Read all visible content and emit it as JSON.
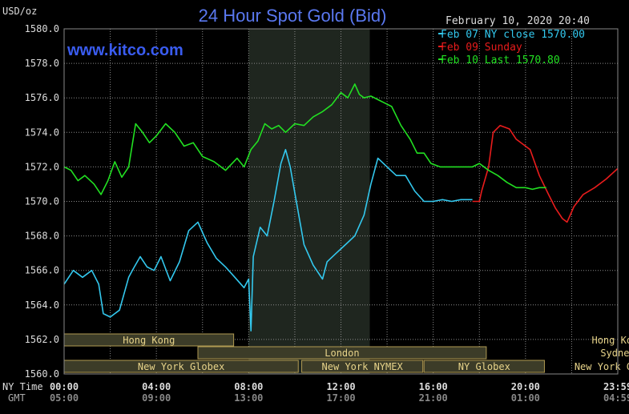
{
  "chart_data": {
    "type": "line",
    "title": "24 Hour Spot Gold (Bid)",
    "watermark": "www.kitco.com",
    "date_stamp": "February 10, 2020 20:40",
    "y_unit_label": "USD/oz",
    "ylim": [
      1560.0,
      1580.0
    ],
    "y_ticks": [
      "1560.0",
      "1562.0",
      "1564.0",
      "1566.0",
      "1568.0",
      "1570.0",
      "1572.0",
      "1574.0",
      "1576.0",
      "1578.0",
      "1580.0"
    ],
    "x_row_labels": [
      "NY Time",
      "GMT"
    ],
    "x_ticks_ny": [
      "00:00",
      "04:00",
      "08:00",
      "12:00",
      "16:00",
      "20:00",
      "23:59"
    ],
    "x_ticks_gmt": [
      "05:00",
      "09:00",
      "13:00",
      "17:00",
      "21:00",
      "01:00",
      "04:59"
    ],
    "colors": {
      "feb07": "#33c8ee",
      "feb09": "#e81c1c",
      "feb10": "#22e022",
      "session_fill": "#3c3c28",
      "session_border": "#b09a52",
      "title": "#5a78f0",
      "shade": "#1f261f"
    },
    "legend": [
      {
        "label": "Feb 07 NY close 1570.00",
        "series": "feb07"
      },
      {
        "label": "Feb 09 Sunday",
        "series": "feb09"
      },
      {
        "label": "Feb 10 Last 1570.80",
        "series": "feb10"
      }
    ],
    "series": [
      {
        "name": "Feb 07",
        "key": "feb07",
        "x": [
          0.0,
          0.4,
          0.8,
          1.2,
          1.5,
          1.7,
          2.0,
          2.4,
          2.8,
          3.0,
          3.3,
          3.6,
          3.9,
          4.2,
          4.6,
          5.0,
          5.4,
          5.8,
          6.2,
          6.6,
          7.0,
          7.4,
          7.8,
          8.0,
          8.1,
          8.2,
          8.5,
          8.8,
          9.1,
          9.4,
          9.6,
          9.8,
          10.0,
          10.4,
          10.8,
          11.2,
          11.4,
          11.8,
          12.2,
          12.6,
          13.0,
          13.3,
          13.6,
          14.0,
          14.4,
          14.8,
          15.2,
          15.6,
          16.0,
          16.4,
          16.8,
          17.2,
          17.5,
          17.7
        ],
        "y": [
          1565.2,
          1566.0,
          1565.6,
          1566.0,
          1565.2,
          1563.5,
          1563.3,
          1563.7,
          1565.6,
          1566.1,
          1566.8,
          1566.2,
          1566.0,
          1566.8,
          1565.4,
          1566.5,
          1568.3,
          1568.8,
          1567.6,
          1566.7,
          1566.2,
          1565.6,
          1565.0,
          1565.5,
          1562.5,
          1566.8,
          1568.5,
          1568.0,
          1570.0,
          1572.2,
          1573.0,
          1572.0,
          1570.5,
          1567.5,
          1566.3,
          1565.5,
          1566.5,
          1567.0,
          1567.5,
          1568.0,
          1569.2,
          1571.0,
          1572.5,
          1572.0,
          1571.5,
          1571.5,
          1570.6,
          1570.0,
          1570.0,
          1570.1,
          1570.0,
          1570.1,
          1570.1,
          1570.1
        ]
      },
      {
        "name": "Feb 09",
        "key": "feb09",
        "x": [
          17.7,
          18.0,
          18.1,
          18.4,
          18.6,
          18.9,
          19.3,
          19.6,
          19.9,
          20.2,
          20.6,
          21.0,
          21.3,
          21.6,
          21.8,
          22.1,
          22.5,
          23.0,
          23.5,
          23.99
        ],
        "y": [
          1570.0,
          1570.0,
          1570.6,
          1572.0,
          1574.0,
          1574.4,
          1574.2,
          1573.6,
          1573.3,
          1573.0,
          1571.5,
          1570.4,
          1569.6,
          1569.0,
          1568.8,
          1569.7,
          1570.4,
          1570.8,
          1571.3,
          1571.9
        ]
      },
      {
        "name": "Feb 10",
        "key": "feb10",
        "x": [
          0.0,
          0.3,
          0.6,
          0.9,
          1.3,
          1.6,
          1.9,
          2.2,
          2.5,
          2.8,
          3.1,
          3.4,
          3.7,
          4.0,
          4.4,
          4.8,
          5.2,
          5.6,
          6.0,
          6.5,
          7.0,
          7.5,
          7.8,
          8.1,
          8.4,
          8.7,
          9.0,
          9.3,
          9.6,
          10.0,
          10.4,
          10.8,
          11.2,
          11.6,
          12.0,
          12.3,
          12.6,
          12.8,
          13.0,
          13.3,
          13.6,
          13.9,
          14.2,
          14.6,
          15.0,
          15.3,
          15.6,
          15.9,
          16.3,
          16.6,
          16.9,
          17.3,
          17.7,
          18.0,
          18.4,
          18.8,
          19.2,
          19.6,
          20.0,
          20.3,
          20.6,
          20.9
        ],
        "y": [
          1572.0,
          1571.8,
          1571.2,
          1571.5,
          1571.0,
          1570.4,
          1571.2,
          1572.3,
          1571.4,
          1572.0,
          1574.5,
          1574.0,
          1573.4,
          1573.8,
          1574.5,
          1574.0,
          1573.2,
          1573.4,
          1572.6,
          1572.3,
          1571.8,
          1572.5,
          1572.0,
          1573.0,
          1573.5,
          1574.5,
          1574.2,
          1574.4,
          1574.0,
          1574.5,
          1574.4,
          1574.9,
          1575.2,
          1575.6,
          1576.3,
          1576.0,
          1576.8,
          1576.2,
          1576.0,
          1576.1,
          1575.9,
          1575.7,
          1575.5,
          1574.4,
          1573.6,
          1572.8,
          1572.8,
          1572.2,
          1572.0,
          1572.0,
          1572.0,
          1572.0,
          1572.0,
          1572.2,
          1571.8,
          1571.5,
          1571.1,
          1570.8,
          1570.8,
          1570.7,
          1570.8,
          1570.8
        ]
      }
    ],
    "sessions": [
      {
        "label": "Hong Kong",
        "x0": -0.05,
        "x1": 7.35,
        "row": 0
      },
      {
        "label": "London",
        "x0": 5.8,
        "x1": 18.3,
        "row": 1
      },
      {
        "label": "New York Globex",
        "x0": -0.05,
        "x1": 10.15,
        "row": 2
      },
      {
        "label": "New York NYMEX",
        "x0": 10.3,
        "x1": 15.55,
        "row": 2
      },
      {
        "label": "NY Globex",
        "x0": 15.6,
        "x1": 20.82,
        "row": 2
      },
      {
        "label": "Hong Kong",
        "x0": 33.1,
        "x1": 40.35,
        "row": 0
      },
      {
        "label": "Sydney",
        "x0": 28.6,
        "x1": 35.3,
        "row": 1
      },
      {
        "label": "New York Globex",
        "x0": 29.1,
        "x1": 39.4,
        "row": 2
      }
    ],
    "shaded_hours": [
      8.0,
      13.25
    ],
    "grid": true
  }
}
